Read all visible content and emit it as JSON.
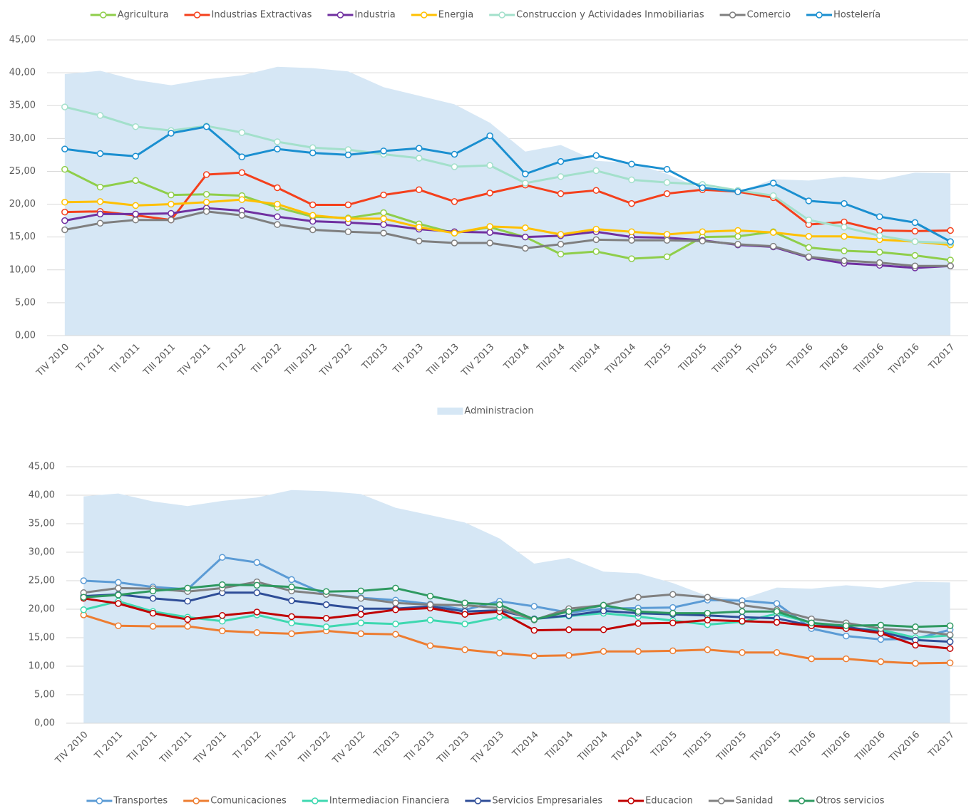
{
  "chart_data": [
    {
      "type": "line",
      "legend": "top",
      "categories": [
        "TIV 2010",
        "TI 2011",
        "TII 2011",
        "TIII 2011",
        "TIV 2011",
        "TI 2012",
        "TII 2012",
        "TIII 2012",
        "TIV 2012",
        "TI2013",
        "TII 2013",
        "TIII 2013",
        "TIV 2013",
        "TI2014",
        "TII2014",
        "TIII2014",
        "TIV2014",
        "TI2015",
        "TII2015",
        "TIII2015",
        "TIV2015",
        "TI2016",
        "TII2016",
        "TIII2016",
        "TIV2016",
        "TI2017"
      ],
      "ylim": [
        0,
        45
      ],
      "yticks": [
        {
          "value": 0,
          "label": "0,00"
        },
        {
          "value": 5,
          "label": "5,00"
        },
        {
          "value": 10,
          "label": "10,00"
        },
        {
          "value": 15,
          "label": "15,00"
        },
        {
          "value": 20,
          "label": "20,00"
        },
        {
          "value": 25,
          "label": "25,00"
        },
        {
          "value": 30,
          "label": "30,00"
        },
        {
          "value": 35,
          "label": "35,00"
        },
        {
          "value": 40,
          "label": "40,00"
        },
        {
          "value": 45,
          "label": "45,00"
        }
      ],
      "grid": true,
      "area": {
        "name": "Administracion",
        "color": "#d6e7f5",
        "values": [
          39.8,
          40.3,
          38.9,
          38.1,
          39.0,
          39.6,
          40.9,
          40.7,
          40.2,
          37.8,
          36.5,
          35.2,
          32.4,
          28.0,
          29.0,
          26.6,
          26.3,
          24.6,
          22.3,
          21.8,
          23.8,
          23.6,
          24.2,
          23.7,
          24.8,
          24.7
        ]
      },
      "series": [
        {
          "name": "Agricultura",
          "color": "#8fce4a",
          "values": [
            25.3,
            22.6,
            23.6,
            21.4,
            21.5,
            21.3,
            19.5,
            18.1,
            17.9,
            18.7,
            17.0,
            15.6,
            16.5,
            15.0,
            12.4,
            12.8,
            11.7,
            12.0,
            15.0,
            15.1,
            15.8,
            13.4,
            12.9,
            12.7,
            12.2,
            11.5
          ]
        },
        {
          "name": "Industrias Extractivas",
          "color": "#f4401c",
          "values": [
            18.8,
            18.9,
            18.3,
            17.6,
            24.5,
            24.8,
            22.5,
            19.9,
            19.9,
            21.4,
            22.2,
            20.4,
            21.7,
            22.9,
            21.6,
            22.1,
            20.1,
            21.6,
            22.2,
            21.9,
            21.0,
            16.9,
            17.3,
            16.0,
            15.9,
            16.0
          ]
        },
        {
          "name": "Industria",
          "color": "#7030a0",
          "values": [
            17.5,
            18.5,
            18.5,
            18.6,
            19.4,
            19.0,
            18.1,
            17.4,
            17.2,
            16.9,
            16.2,
            15.8,
            15.7,
            15.0,
            15.2,
            15.8,
            15.0,
            14.9,
            14.5,
            13.8,
            13.5,
            11.9,
            11.0,
            10.7,
            10.3,
            10.6
          ]
        },
        {
          "name": "Energia",
          "color": "#ffc000",
          "values": [
            20.3,
            20.4,
            19.8,
            20.0,
            20.3,
            20.7,
            20.0,
            18.3,
            17.8,
            17.8,
            16.5,
            15.6,
            16.6,
            16.4,
            15.4,
            16.2,
            15.8,
            15.4,
            15.8,
            16.0,
            15.7,
            15.1,
            15.1,
            14.6,
            14.3,
            13.8
          ]
        },
        {
          "name": "Construccion y Actividades Inmobiliarias",
          "color": "#a3e0cb",
          "values": [
            34.8,
            33.5,
            31.8,
            31.2,
            31.9,
            30.9,
            29.5,
            28.6,
            28.3,
            27.6,
            27.0,
            25.7,
            25.9,
            23.2,
            24.2,
            25.1,
            23.7,
            23.3,
            23.0,
            22.1,
            21.3,
            17.6,
            16.5,
            15.2,
            14.3,
            14.1
          ]
        },
        {
          "name": "Comercio",
          "color": "#7f7f7f",
          "values": [
            16.1,
            17.1,
            17.6,
            17.6,
            18.9,
            18.3,
            16.9,
            16.1,
            15.8,
            15.6,
            14.4,
            14.1,
            14.1,
            13.3,
            13.9,
            14.6,
            14.5,
            14.5,
            14.4,
            13.9,
            13.6,
            12.0,
            11.4,
            11.1,
            10.6,
            10.6
          ]
        },
        {
          "name": "Hostelería",
          "color": "#1a8fd0",
          "values": [
            28.4,
            27.7,
            27.3,
            30.8,
            31.8,
            27.2,
            28.4,
            27.8,
            27.5,
            28.1,
            28.5,
            27.6,
            30.4,
            24.6,
            26.5,
            27.4,
            26.1,
            25.3,
            22.5,
            21.9,
            23.2,
            20.5,
            20.1,
            18.1,
            17.2,
            14.3
          ]
        }
      ]
    },
    {
      "type": "line",
      "legend": "bottom",
      "categories": [
        "TIV 2010",
        "TI 2011",
        "TII 2011",
        "TIII 2011",
        "TIV 2011",
        "TI 2012",
        "TII 2012",
        "TIII 2012",
        "TIV 2012",
        "TI2013",
        "TII 2013",
        "TIII 2013",
        "TIV 2013",
        "TI2014",
        "TII2014",
        "TIII2014",
        "TIV2014",
        "TI2015",
        "TII2015",
        "TIII2015",
        "TIV2015",
        "TI2016",
        "TII2016",
        "TIII2016",
        "TIV2016",
        "TI2017"
      ],
      "ylim": [
        0,
        45
      ],
      "yticks": [
        {
          "value": 0,
          "label": "0,00"
        },
        {
          "value": 5,
          "label": "5,00"
        },
        {
          "value": 10,
          "label": "10,00"
        },
        {
          "value": 15,
          "label": "15,00"
        },
        {
          "value": 20,
          "label": "20,00"
        },
        {
          "value": 25,
          "label": "25,00"
        },
        {
          "value": 30,
          "label": "30,00"
        },
        {
          "value": 35,
          "label": "35,00"
        },
        {
          "value": 40,
          "label": "40,00"
        },
        {
          "value": 45,
          "label": "45,00"
        }
      ],
      "grid": true,
      "area": {
        "color": "#d6e7f5",
        "values": [
          39.8,
          40.3,
          38.9,
          38.1,
          39.0,
          39.6,
          40.9,
          40.7,
          40.2,
          37.8,
          36.5,
          35.2,
          32.4,
          28.0,
          29.0,
          26.6,
          26.3,
          24.6,
          22.3,
          21.8,
          23.8,
          23.6,
          24.2,
          23.7,
          24.8,
          24.7
        ]
      },
      "series": [
        {
          "name": "Transportes",
          "color": "#5b9bd5",
          "values": [
            25.0,
            24.7,
            23.9,
            23.5,
            29.1,
            28.2,
            25.2,
            22.6,
            22.0,
            21.6,
            20.9,
            19.9,
            21.4,
            20.5,
            19.4,
            20.1,
            20.2,
            20.3,
            21.6,
            21.5,
            21.0,
            16.6,
            15.3,
            14.7,
            14.8,
            16.4
          ]
        },
        {
          "name": "Comunicaciones",
          "color": "#ed7d31",
          "values": [
            19.0,
            17.1,
            17.0,
            17.0,
            16.2,
            15.9,
            15.7,
            16.2,
            15.7,
            15.6,
            13.6,
            12.9,
            12.3,
            11.8,
            11.9,
            12.6,
            12.6,
            12.7,
            12.9,
            12.4,
            12.4,
            11.3,
            11.3,
            10.8,
            10.5,
            10.6
          ]
        },
        {
          "name": "Intermediacion Financiera",
          "color": "#3ed8b0",
          "values": [
            19.9,
            21.4,
            19.6,
            18.6,
            17.9,
            19.0,
            17.6,
            16.9,
            17.6,
            17.4,
            18.1,
            17.4,
            18.6,
            18.3,
            18.8,
            19.3,
            18.7,
            18.0,
            17.3,
            17.8,
            19.2,
            17.6,
            16.6,
            16.4,
            15.0,
            15.4
          ]
        },
        {
          "name": "Servicios Empresariales",
          "color": "#2e4d97",
          "values": [
            22.3,
            22.6,
            21.9,
            21.4,
            22.9,
            22.9,
            21.5,
            20.8,
            20.1,
            20.1,
            20.5,
            19.6,
            19.8,
            18.3,
            18.9,
            19.7,
            19.3,
            19.1,
            18.9,
            18.6,
            18.4,
            17.1,
            16.9,
            16.0,
            14.6,
            14.3
          ]
        },
        {
          "name": "Educacion",
          "color": "#c00000",
          "values": [
            21.9,
            21.0,
            19.3,
            18.2,
            18.9,
            19.5,
            18.7,
            18.4,
            19.1,
            19.9,
            20.2,
            19.1,
            19.6,
            16.3,
            16.4,
            16.4,
            17.5,
            17.6,
            18.1,
            17.9,
            17.7,
            17.1,
            16.6,
            15.8,
            13.7,
            13.1
          ]
        },
        {
          "name": "Sanidad",
          "color": "#808080",
          "values": [
            22.9,
            23.7,
            23.6,
            23.1,
            23.7,
            24.8,
            23.2,
            22.6,
            21.9,
            21.1,
            20.8,
            20.7,
            20.2,
            18.1,
            20.1,
            20.7,
            22.1,
            22.6,
            22.1,
            20.7,
            19.9,
            18.3,
            17.6,
            16.6,
            16.2,
            15.5
          ]
        },
        {
          "name": "Otros servicios",
          "color": "#2e9960",
          "values": [
            22.1,
            22.5,
            23.2,
            23.7,
            24.3,
            24.2,
            23.9,
            23.1,
            23.2,
            23.7,
            22.3,
            21.1,
            20.8,
            18.2,
            19.6,
            20.7,
            19.6,
            19.3,
            19.3,
            19.6,
            19.6,
            17.6,
            17.1,
            17.2,
            16.9,
            17.1
          ]
        }
      ]
    }
  ]
}
